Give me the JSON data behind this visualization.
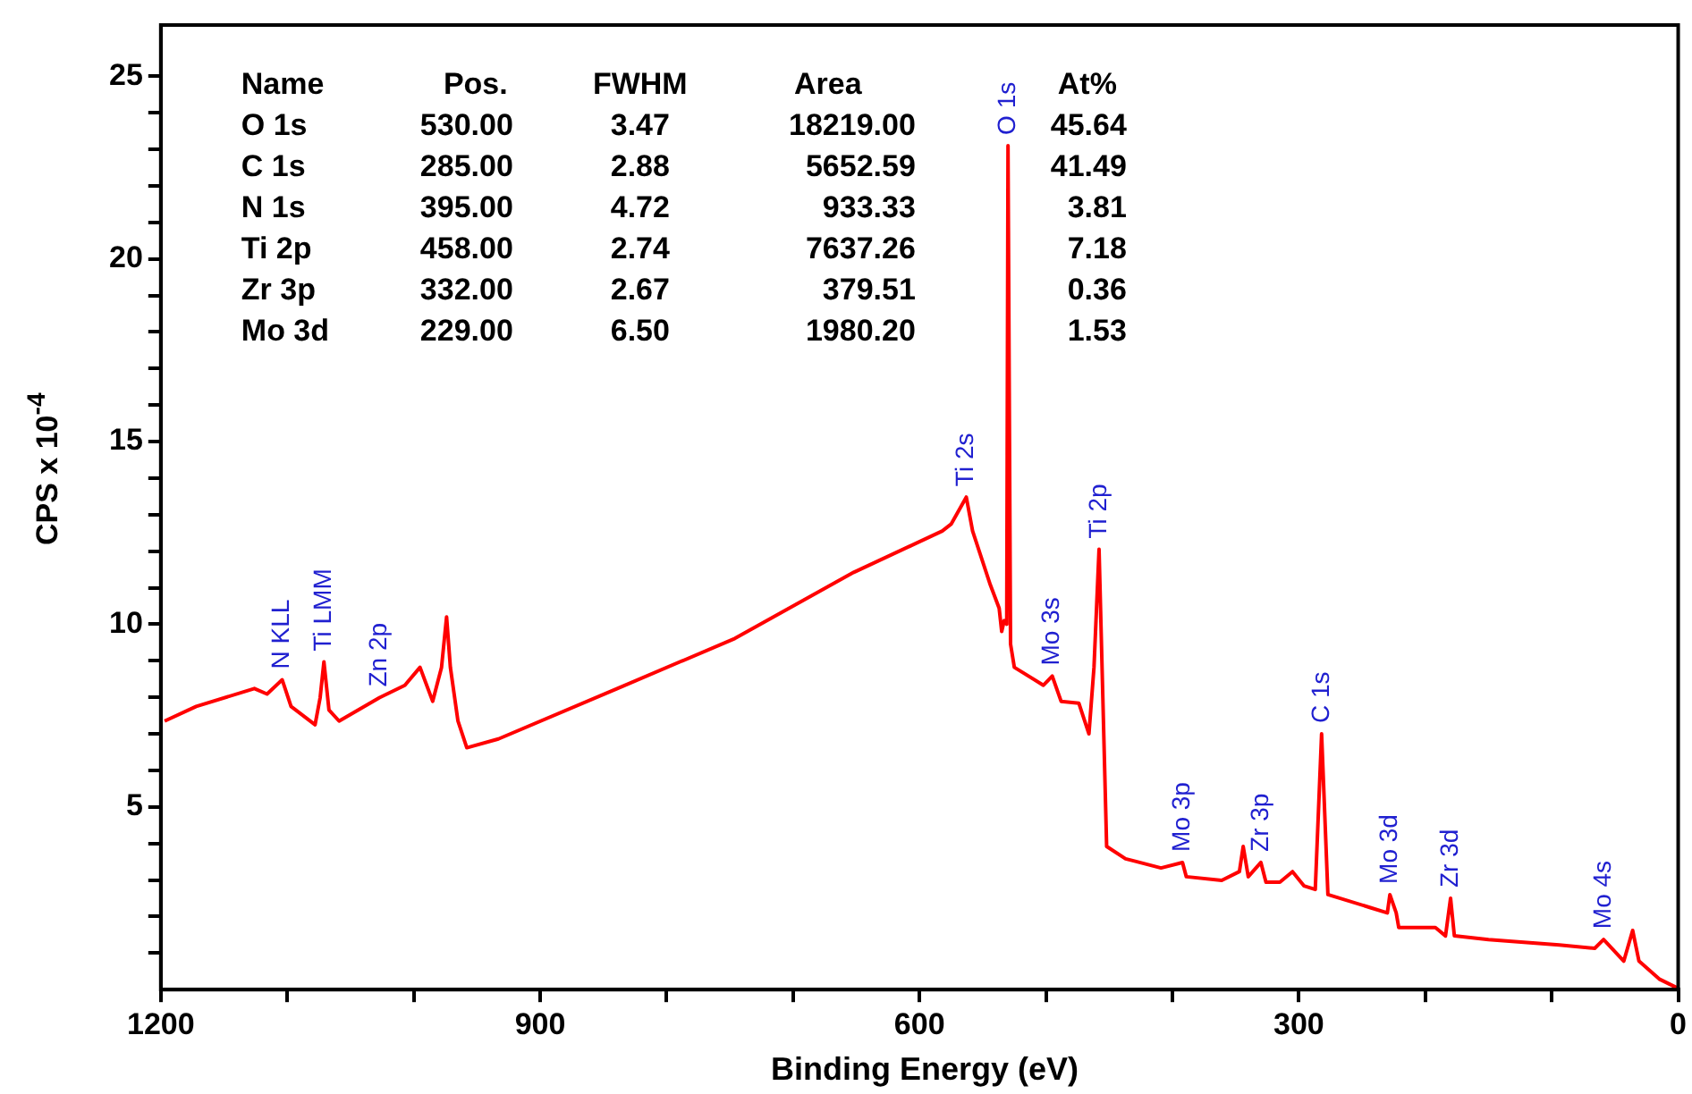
{
  "chart_data": {
    "type": "line",
    "xlabel": "Binding Energy (eV)",
    "ylabel": "CPS x 10$^{-4}$",
    "xlim": [
      1200,
      0
    ],
    "xticks": [
      1200,
      {
        "value": 1100,
        "label": null
      },
      {
        "value": 1000,
        "label": null
      },
      900,
      {
        "value": 800,
        "label": null
      },
      {
        "value": 700,
        "label": null
      },
      600,
      {
        "value": 500,
        "label": null
      },
      {
        "value": 400,
        "label": null
      },
      300,
      {
        "value": 200,
        "label": null
      },
      {
        "value": 100,
        "label": null
      },
      0
    ],
    "ylim": [
      0,
      26.4
    ],
    "yticks": [
      {
        "value": 1,
        "label": null
      },
      {
        "value": 2,
        "label": null
      },
      {
        "value": 3,
        "label": null
      },
      {
        "value": 4,
        "label": null
      },
      5,
      {
        "value": 6,
        "label": null
      },
      {
        "value": 7,
        "label": null
      },
      {
        "value": 8,
        "label": null
      },
      {
        "value": 9,
        "label": null
      },
      10,
      {
        "value": 11,
        "label": null
      },
      {
        "value": 12,
        "label": null
      },
      {
        "value": 13,
        "label": null
      },
      {
        "value": 14,
        "label": null
      },
      15,
      {
        "value": 16,
        "label": null
      },
      {
        "value": 17,
        "label": null
      },
      {
        "value": 18,
        "label": null
      },
      {
        "value": 19,
        "label": null
      },
      20,
      {
        "value": 21,
        "label": null
      },
      {
        "value": 22,
        "label": null
      },
      {
        "value": 23,
        "label": null
      },
      {
        "value": 24,
        "label": null
      },
      25
    ],
    "grid": false,
    "legend": false,
    "marker": "none",
    "line_style": "solid",
    "series": [
      {
        "color": "#ff0000",
        "x": [
          1197,
          1172,
          1126,
          1116,
          1104,
          1097,
          1078,
          1074,
          1071,
          1067,
          1059,
          1027,
          1007,
          995,
          985,
          978,
          974,
          971,
          965,
          958,
          933,
          839,
          746,
          652,
          582,
          575,
          563,
          558,
          544,
          537,
          535,
          533,
          531,
          530,
          528,
          525,
          502,
          495,
          488,
          474,
          466,
          462,
          458,
          452,
          437,
          409,
          392,
          389,
          361,
          347,
          344,
          340,
          330,
          326,
          315,
          305,
          296,
          287,
          282,
          277,
          244,
          230,
          228,
          223,
          221,
          192,
          184,
          180,
          177,
          150,
          94,
          66,
          59,
          43,
          36,
          31,
          15,
          1
        ],
        "values": [
          7.35,
          7.75,
          8.24,
          8.09,
          8.48,
          7.75,
          7.25,
          7.99,
          8.97,
          7.65,
          7.35,
          7.99,
          8.33,
          8.82,
          7.89,
          8.82,
          10.2,
          8.82,
          7.35,
          6.62,
          6.86,
          8.24,
          9.61,
          11.42,
          12.55,
          12.74,
          13.48,
          12.55,
          11.08,
          10.44,
          9.8,
          10.1,
          10.0,
          23.1,
          9.46,
          8.82,
          8.33,
          8.58,
          7.89,
          7.84,
          7.0,
          8.82,
          12.05,
          3.92,
          3.58,
          3.33,
          3.48,
          3.09,
          2.99,
          3.23,
          3.92,
          3.09,
          3.48,
          2.94,
          2.94,
          3.23,
          2.84,
          2.74,
          7.0,
          2.6,
          2.25,
          2.1,
          2.6,
          2.1,
          1.7,
          1.7,
          1.47,
          2.5,
          1.47,
          1.37,
          1.22,
          1.13,
          1.37,
          0.78,
          1.62,
          0.78,
          0.29,
          0.05
        ]
      }
    ],
    "annotations": [
      "Name\tPos.\tFWHM\tArea\tAt%",
      "O 1s\t530.00\t3.47\t18219.00\t45.64",
      "C 1s\t285.00\t2.88\t5652.59\t41.49",
      "N 1s\t395.00\t4.72\t933.33\t3.81",
      "Ti 2p\t458.00\t2.74\t7637.26\t7.18",
      "Zr 3p\t332.00\t2.67\t379.51\t0.36",
      "Mo 3d\t229.00\t6.50\t1980.20\t1.53",
      {
        "text": "N KLL",
        "x": 1104,
        "y": 8.48
      },
      {
        "text": "Ti LMM",
        "x": 1071,
        "y": 8.97
      },
      {
        "text": "Zn 2p",
        "x": 1027,
        "y": 7.99
      },
      {
        "text": "Ti 2s",
        "x": 563,
        "y": 13.48
      },
      {
        "text": "O 1s",
        "x": 530,
        "y": 23.1
      },
      {
        "text": "Mo 3s",
        "x": 495,
        "y": 8.58
      },
      {
        "text": "Ti 2p",
        "x": 458,
        "y": 12.05
      },
      {
        "text": "Mo 3p",
        "x": 392,
        "y": 3.48
      },
      {
        "text": "Zr 3p",
        "x": 330,
        "y": 3.48
      },
      {
        "text": "C 1s",
        "x": 282,
        "y": 7.0
      },
      {
        "text": "Mo 3d",
        "x": 228,
        "y": 2.6
      },
      {
        "text": "Zr 3d",
        "x": 180,
        "y": 2.5
      },
      {
        "text": "Mo 4s",
        "x": 59,
        "y": 1.37
      }
    ]
  }
}
